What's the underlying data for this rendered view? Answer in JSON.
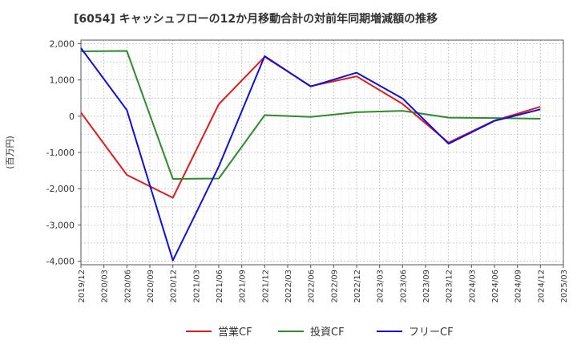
{
  "chart_data": {
    "type": "line",
    "title": "[6054]  キャッシュフローの12か月移動合計の対前年同期増減額の推移",
    "ylabel": "(百万円)",
    "xlabel": "",
    "ylim": [
      -4100,
      2100
    ],
    "yticks": [
      2000,
      1000,
      0,
      -1000,
      -2000,
      -3000,
      -4000
    ],
    "ytick_labels": [
      "2,000",
      "1,000",
      "0",
      "-1,000",
      "-2,000",
      "-3,000",
      "-4,000"
    ],
    "x_labels": [
      "2019/12",
      "2020/03",
      "2020/06",
      "2020/09",
      "2020/12",
      "2021/03",
      "2021/06",
      "2021/09",
      "2021/12",
      "2022/03",
      "2022/06",
      "2022/09",
      "2022/12",
      "2023/03",
      "2023/06",
      "2023/09",
      "2023/12",
      "2024/03",
      "2024/06",
      "2024/09",
      "2024/12",
      "2025/03"
    ],
    "grid": true,
    "legend_position": "bottom-center",
    "series": [
      {
        "name": "営業CF",
        "color": "#e31a1c",
        "points": [
          [
            0,
            100
          ],
          [
            2,
            -1620
          ],
          [
            4,
            -2250
          ],
          [
            6,
            330
          ],
          [
            8,
            1640
          ],
          [
            10,
            830
          ],
          [
            12,
            1100
          ],
          [
            14,
            340
          ],
          [
            16,
            -730
          ],
          [
            18,
            -120
          ],
          [
            20,
            260
          ]
        ]
      },
      {
        "name": "投資CF",
        "color": "#2e8b2e",
        "points": [
          [
            0,
            1790
          ],
          [
            2,
            1800
          ],
          [
            4,
            -1730
          ],
          [
            6,
            -1720
          ],
          [
            8,
            30
          ],
          [
            10,
            -20
          ],
          [
            12,
            110
          ],
          [
            14,
            150
          ],
          [
            16,
            -40
          ],
          [
            18,
            -50
          ],
          [
            20,
            -70
          ]
        ]
      },
      {
        "name": "フリーCF",
        "color": "#1010d8",
        "points": [
          [
            0,
            1880
          ],
          [
            2,
            170
          ],
          [
            4,
            -3980
          ],
          [
            6,
            -1390
          ],
          [
            8,
            1660
          ],
          [
            10,
            820
          ],
          [
            12,
            1200
          ],
          [
            14,
            490
          ],
          [
            16,
            -760
          ],
          [
            18,
            -130
          ],
          [
            20,
            190
          ]
        ]
      }
    ]
  }
}
